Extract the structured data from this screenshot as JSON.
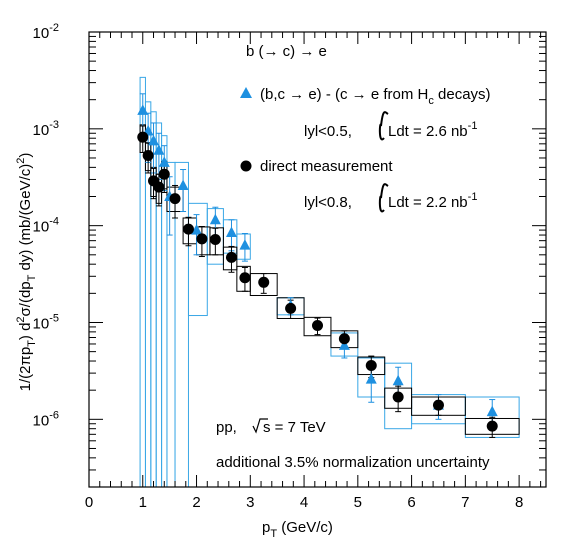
{
  "chart_data": {
    "type": "scatter",
    "title": "",
    "xlabel_main": "p",
    "xlabel_sub": "T",
    "xlabel_tail": " (GeV/c)",
    "ylabel_parts": [
      "1/(2πp",
      "T",
      ") d",
      "2",
      "σ/(dp",
      "T",
      " dy) (mb/(GeV/c)",
      "2",
      ")"
    ],
    "x_range": [
      0,
      8.5
    ],
    "y_range": [
      2e-07,
      0.01
    ],
    "y_scale": "log",
    "x_ticks": [
      "0",
      "1",
      "2",
      "3",
      "4",
      "5",
      "6",
      "7",
      "8"
    ],
    "y_ticks": [
      {
        "base": "10",
        "exp": "-2",
        "value": 0.01
      },
      {
        "base": "10",
        "exp": "-3",
        "value": 0.001
      },
      {
        "base": "10",
        "exp": "-4",
        "value": 0.0001
      },
      {
        "base": "10",
        "exp": "-5",
        "value": 1e-05
      },
      {
        "base": "10",
        "exp": "-6",
        "value": 1e-06
      }
    ],
    "colors": {
      "triangle": "#1e90e0",
      "box": "#39a7e6",
      "circle": "#000000"
    },
    "series": [
      {
        "name": "(b,c → e) - (c → e from H_c decays)",
        "marker": "triangle",
        "points": [
          {
            "x": 1.0,
            "xl": 0.95,
            "xh": 1.05,
            "y": 0.00155,
            "el": 0.00075,
            "eh": 0.00075,
            "sl": 2e-07,
            "sh": 0.0034
          },
          {
            "x": 1.1,
            "xl": 1.05,
            "xh": 1.15,
            "y": 0.00095,
            "el": 0.0005,
            "eh": 0.0005,
            "sl": 2e-07,
            "sh": 0.0019
          },
          {
            "x": 1.2,
            "xl": 1.15,
            "xh": 1.25,
            "y": 0.00075,
            "el": 0.0004,
            "eh": 0.0004,
            "sl": 2e-07,
            "sh": 0.0015
          },
          {
            "x": 1.3,
            "xl": 1.25,
            "xh": 1.35,
            "y": 0.0006,
            "el": 0.0003,
            "eh": 0.0003,
            "sl": 2e-07,
            "sh": 0.00115
          },
          {
            "x": 1.4,
            "xl": 1.35,
            "xh": 1.45,
            "y": 0.00045,
            "el": 0.00022,
            "eh": 0.00022,
            "sl": 2e-07,
            "sh": 0.00085
          },
          {
            "x": 1.5,
            "xl": 1.45,
            "xh": 1.6,
            "y": 0.0002,
            "el": 0.00012,
            "eh": 0.00012,
            "sl": 2e-07,
            "sh": 0.00045
          },
          {
            "x": 1.75,
            "xl": 1.6,
            "xh": 1.85,
            "y": 0.00026,
            "el": 0.00012,
            "eh": 0.00012,
            "sl": 2e-07,
            "sh": 0.00045
          },
          {
            "x": 2.0,
            "xl": 1.85,
            "xh": 2.2,
            "y": 9e-05,
            "el": 4e-05,
            "eh": 4e-05,
            "sl": 1.18e-05,
            "sh": 0.00017
          },
          {
            "x": 2.35,
            "xl": 2.2,
            "xh": 2.5,
            "y": 0.000115,
            "el": 4e-05,
            "eh": 4e-05,
            "sl": 4e-05,
            "sh": 0.00015
          },
          {
            "x": 2.65,
            "xl": 2.5,
            "xh": 2.75,
            "y": 8.5e-05,
            "el": 3e-05,
            "eh": 3e-05,
            "sl": 5.2e-05,
            "sh": 0.000115
          },
          {
            "x": 2.9,
            "xl": 2.75,
            "xh": 3.0,
            "y": 6.3e-05,
            "el": 2e-05,
            "eh": 2e-05,
            "sl": 4.5e-05,
            "sh": 8.2e-05
          },
          {
            "x": 3.75,
            "xl": 3.5,
            "xh": 4.0,
            "y": 1.5e-05,
            "el": 3e-06,
            "eh": 3e-06,
            "sl": 1.2e-05,
            "sh": 1.8e-05
          },
          {
            "x": 4.75,
            "xl": 4.5,
            "xh": 5.0,
            "y": 5.8e-06,
            "el": 1.5e-06,
            "eh": 1.5e-06,
            "sl": 4.5e-06,
            "sh": 7.8e-06
          },
          {
            "x": 5.25,
            "xl": 5.0,
            "xh": 5.5,
            "y": 2.6e-06,
            "el": 1.1e-06,
            "eh": 1.1e-06,
            "sl": 1.7e-06,
            "sh": 4.3e-06
          },
          {
            "x": 5.75,
            "xl": 5.5,
            "xh": 6.0,
            "y": 2.5e-06,
            "el": 9.5e-07,
            "eh": 9.5e-07,
            "sl": 8e-07,
            "sh": 3.8e-06
          },
          {
            "x": 6.5,
            "xl": 6.0,
            "xh": 7.0,
            "y": 1.4e-06,
            "el": 4e-07,
            "eh": 4e-07,
            "sl": 9e-07,
            "sh": 1.8e-06
          },
          {
            "x": 7.5,
            "xl": 7.0,
            "xh": 8.0,
            "y": 1.2e-06,
            "el": 4e-07,
            "eh": 4e-07,
            "sl": 6.5e-07,
            "sh": 1.7e-06
          }
        ]
      },
      {
        "name": "direct measurement",
        "marker": "circle",
        "points": [
          {
            "x": 1.0,
            "xl": 0.95,
            "xh": 1.05,
            "y": 0.00082,
            "el": 0.00025,
            "eh": 0.00025,
            "sl": 0.00057,
            "sh": 0.0011
          },
          {
            "x": 1.1,
            "xl": 1.05,
            "xh": 1.15,
            "y": 0.00053,
            "el": 0.00018,
            "eh": 0.00018,
            "sl": 0.00037,
            "sh": 0.00072
          },
          {
            "x": 1.2,
            "xl": 1.15,
            "xh": 1.25,
            "y": 0.00029,
            "el": 0.0001,
            "eh": 0.0001,
            "sl": 0.0002,
            "sh": 0.0004
          },
          {
            "x": 1.3,
            "xl": 1.25,
            "xh": 1.35,
            "y": 0.00025,
            "el": 9e-05,
            "eh": 9e-05,
            "sl": 0.00017,
            "sh": 0.00034
          },
          {
            "x": 1.4,
            "xl": 1.35,
            "xh": 1.45,
            "y": 0.00034,
            "el": 0.00012,
            "eh": 0.00012,
            "sl": 0.00024,
            "sh": 0.00045
          },
          {
            "x": 1.6,
            "xl": 1.45,
            "xh": 1.75,
            "y": 0.00019,
            "el": 7e-05,
            "eh": 7e-05,
            "sl": 0.00014,
            "sh": 0.00025
          },
          {
            "x": 1.85,
            "xl": 1.75,
            "xh": 2.0,
            "y": 9.2e-05,
            "el": 3e-05,
            "eh": 3e-05,
            "sl": 6.5e-05,
            "sh": 0.00012
          },
          {
            "x": 2.1,
            "xl": 2.0,
            "xh": 2.25,
            "y": 7.3e-05,
            "el": 2.5e-05,
            "eh": 2.5e-05,
            "sl": 5e-05,
            "sh": 9.7e-05
          },
          {
            "x": 2.35,
            "xl": 2.25,
            "xh": 2.5,
            "y": 7.2e-05,
            "el": 2.2e-05,
            "eh": 2.2e-05,
            "sl": 5e-05,
            "sh": 9.5e-05
          },
          {
            "x": 2.65,
            "xl": 2.5,
            "xh": 2.75,
            "y": 4.7e-05,
            "el": 1.4e-05,
            "eh": 1.4e-05,
            "sl": 3.5e-05,
            "sh": 6e-05
          },
          {
            "x": 2.9,
            "xl": 2.75,
            "xh": 3.0,
            "y": 2.9e-05,
            "el": 8e-06,
            "eh": 8e-06,
            "sl": 2.1e-05,
            "sh": 3.8e-05
          },
          {
            "x": 3.25,
            "xl": 3.0,
            "xh": 3.5,
            "y": 2.6e-05,
            "el": 6e-06,
            "eh": 6e-06,
            "sl": 1.9e-05,
            "sh": 3.2e-05
          },
          {
            "x": 3.75,
            "xl": 3.5,
            "xh": 4.0,
            "y": 1.4e-05,
            "el": 3e-06,
            "eh": 3e-06,
            "sl": 1.1e-05,
            "sh": 1.8e-05
          },
          {
            "x": 4.25,
            "xl": 4.0,
            "xh": 4.5,
            "y": 9.3e-06,
            "el": 1.8e-06,
            "eh": 1.8e-06,
            "sl": 7.3e-06,
            "sh": 1.13e-05
          },
          {
            "x": 4.75,
            "xl": 4.5,
            "xh": 5.0,
            "y": 6.8e-06,
            "el": 1.4e-06,
            "eh": 1.4e-06,
            "sl": 5.5e-06,
            "sh": 8.2e-06
          },
          {
            "x": 5.25,
            "xl": 5.0,
            "xh": 5.5,
            "y": 3.6e-06,
            "el": 9e-07,
            "eh": 9e-07,
            "sl": 2.9e-06,
            "sh": 4.4e-06
          },
          {
            "x": 5.75,
            "xl": 5.5,
            "xh": 6.0,
            "y": 1.7e-06,
            "el": 5e-07,
            "eh": 5e-07,
            "sl": 1.3e-06,
            "sh": 2.1e-06
          },
          {
            "x": 6.5,
            "xl": 6.0,
            "xh": 7.0,
            "y": 1.4e-06,
            "el": 3e-07,
            "eh": 3e-07,
            "sl": 1.1e-06,
            "sh": 1.7e-06
          },
          {
            "x": 7.5,
            "xl": 7.0,
            "xh": 8.0,
            "y": 8.5e-07,
            "el": 2e-07,
            "eh": 2e-07,
            "sl": 7e-07,
            "sh": 1.02e-06
          }
        ]
      }
    ],
    "annotations": {
      "process": "b (→ c) → e",
      "triangle_label_main": "(b,c → e) - (c → e from H",
      "triangle_label_sub": "c",
      "triangle_label_tail": " decays)",
      "cut_tri_a": "lyl<0.5,",
      "cut_tri_b": "Ldt = 2.6 nb",
      "cut_tri_exp": "-1",
      "circle_label": "direct measurement",
      "cut_circ_a": "lyl<0.8,",
      "cut_circ_b": "Ldt = 2.2 nb",
      "cut_circ_exp": "-1",
      "system_a": "pp, ",
      "system_b": "s = 7 TeV",
      "norm_note": "additional 3.5% normalization uncertainty"
    }
  }
}
